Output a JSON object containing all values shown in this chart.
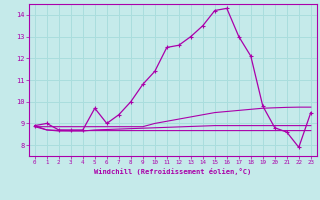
{
  "xlabel": "Windchill (Refroidissement éolien,°C)",
  "xlim": [
    -0.5,
    23.5
  ],
  "ylim": [
    7.5,
    14.5
  ],
  "xticks": [
    0,
    1,
    2,
    3,
    4,
    5,
    6,
    7,
    8,
    9,
    10,
    11,
    12,
    13,
    14,
    15,
    16,
    17,
    18,
    19,
    20,
    21,
    22,
    23
  ],
  "yticks": [
    8,
    9,
    10,
    11,
    12,
    13,
    14
  ],
  "background_color": "#c5eaea",
  "line_color": "#aa00aa",
  "grid_color": "#aadddd",
  "line1_x": [
    0,
    1,
    2,
    3,
    4,
    5,
    6,
    7,
    8,
    9,
    10,
    11,
    12,
    13,
    14,
    15,
    16,
    17,
    18,
    19,
    20,
    21,
    22,
    23
  ],
  "line1_y": [
    8.9,
    9.0,
    8.7,
    8.7,
    8.7,
    9.7,
    9.0,
    9.4,
    10.0,
    10.8,
    11.4,
    12.5,
    12.6,
    13.0,
    13.5,
    14.2,
    14.3,
    13.0,
    12.1,
    9.8,
    8.8,
    8.6,
    7.9,
    9.5
  ],
  "line2_x": [
    0,
    1,
    2,
    3,
    4,
    5,
    6,
    7,
    8,
    9,
    10,
    11,
    12,
    13,
    14,
    15,
    16,
    17,
    18,
    19,
    20,
    21,
    22,
    23
  ],
  "line2_y": [
    8.85,
    8.85,
    8.85,
    8.85,
    8.85,
    8.85,
    8.85,
    8.85,
    8.85,
    8.85,
    9.0,
    9.1,
    9.2,
    9.3,
    9.4,
    9.5,
    9.55,
    9.6,
    9.65,
    9.7,
    9.72,
    9.74,
    9.75,
    9.75
  ],
  "line3_x": [
    0,
    1,
    2,
    3,
    4,
    5,
    6,
    7,
    8,
    9,
    10,
    11,
    12,
    13,
    14,
    15,
    16,
    17,
    18,
    19,
    20,
    21,
    22,
    23
  ],
  "line3_y": [
    8.9,
    8.7,
    8.65,
    8.65,
    8.65,
    8.7,
    8.72,
    8.74,
    8.76,
    8.78,
    8.8,
    8.82,
    8.84,
    8.86,
    8.88,
    8.9,
    8.9,
    8.9,
    8.9,
    8.9,
    8.9,
    8.9,
    8.9,
    8.9
  ],
  "line4_x": [
    0,
    1,
    2,
    3,
    4,
    5,
    6,
    7,
    8,
    9,
    10,
    11,
    12,
    13,
    14,
    15,
    16,
    17,
    18,
    19,
    20,
    21,
    22,
    23
  ],
  "line4_y": [
    8.85,
    8.7,
    8.68,
    8.67,
    8.67,
    8.67,
    8.67,
    8.67,
    8.67,
    8.67,
    8.67,
    8.67,
    8.67,
    8.67,
    8.67,
    8.67,
    8.67,
    8.67,
    8.67,
    8.67,
    8.67,
    8.67,
    8.67,
    8.67
  ]
}
